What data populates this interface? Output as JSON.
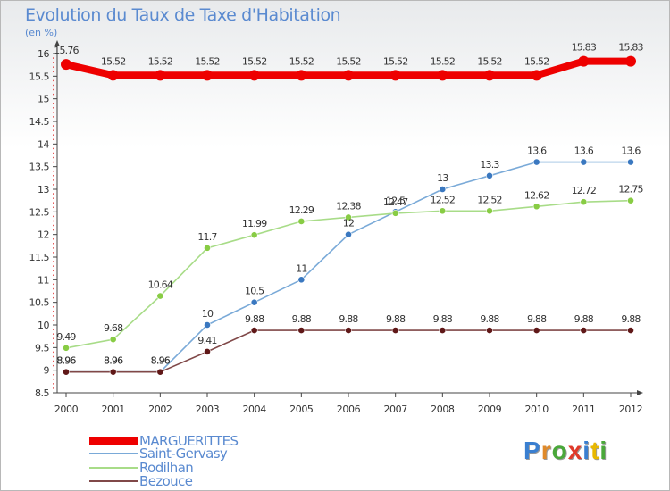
{
  "header": {
    "title": "Evolution du Taux de Taxe d'Habitation",
    "unit": "(en %)"
  },
  "logo": {
    "text": "Proxiti",
    "letter_colors": [
      "#3a7fd0",
      "#e08a2a",
      "#4aa83a",
      "#e03a2a",
      "#3a7fd0",
      "#e8b800",
      "#4aa83a"
    ]
  },
  "chart_data": {
    "type": "line",
    "title": "Evolution du Taux de Taxe d'Habitation",
    "ylabel": "(en %)",
    "xlabel": "",
    "x": [
      "2000",
      "2001",
      "2002",
      "2003",
      "2004",
      "2005",
      "2006",
      "2007",
      "2008",
      "2009",
      "2010",
      "2011",
      "2012"
    ],
    "ylim": [
      8.5,
      16
    ],
    "yticks": [
      "8.5",
      "9",
      "9.5",
      "10",
      "10.5",
      "11",
      "11.5",
      "12",
      "12.5",
      "13",
      "13.5",
      "14",
      "14.5",
      "15",
      "15.5",
      "16"
    ],
    "grid": false,
    "legend_position": "bottom-left",
    "series": [
      {
        "name": "MARGUERITTES",
        "color": "#ee0000",
        "highlight": true,
        "values": [
          15.76,
          15.52,
          15.52,
          15.52,
          15.52,
          15.52,
          15.52,
          15.52,
          15.52,
          15.52,
          15.52,
          15.83,
          15.83
        ],
        "labels": [
          "15.76",
          "15.52",
          "15.52",
          "15.52",
          "15.52",
          "15.52",
          "15.52",
          "15.52",
          "15.52",
          "15.52",
          "15.52",
          "15.83",
          "15.83"
        ]
      },
      {
        "name": "Saint-Gervasy",
        "color": "#7aaad8",
        "marker": "#3a78c0",
        "values": [
          8.96,
          8.96,
          8.96,
          10,
          10.5,
          11,
          12,
          12.5,
          13,
          13.3,
          13.6,
          13.6,
          13.6
        ],
        "labels": [
          "8.96",
          "8.96",
          "8.96",
          "10",
          "10.5",
          "11",
          "12",
          "12.5",
          "13",
          "13.3",
          "13.6",
          "13.6",
          "13.6"
        ]
      },
      {
        "name": "Rodilhan",
        "color": "#a8dc88",
        "marker": "#88cc44",
        "values": [
          9.49,
          9.68,
          10.64,
          11.7,
          11.99,
          12.29,
          12.38,
          12.47,
          12.52,
          12.52,
          12.62,
          12.72,
          12.75
        ],
        "labels": [
          "9.49",
          "9.68",
          "10.64",
          "11.7",
          "11.99",
          "12.29",
          "12.38",
          "12.47",
          "12.52",
          "12.52",
          "12.62",
          "12.72",
          "12.75"
        ]
      },
      {
        "name": "Bezouce",
        "color": "#804848",
        "marker": "#601818",
        "values": [
          8.96,
          8.96,
          8.96,
          9.41,
          9.88,
          9.88,
          9.88,
          9.88,
          9.88,
          9.88,
          9.88,
          9.88,
          9.88
        ],
        "labels": [
          "8.96",
          "8.96",
          "8.96",
          "9.41",
          "9.88",
          "9.88",
          "9.88",
          "9.88",
          "9.88",
          "9.88",
          "9.88",
          "9.88",
          "9.88"
        ]
      }
    ]
  }
}
